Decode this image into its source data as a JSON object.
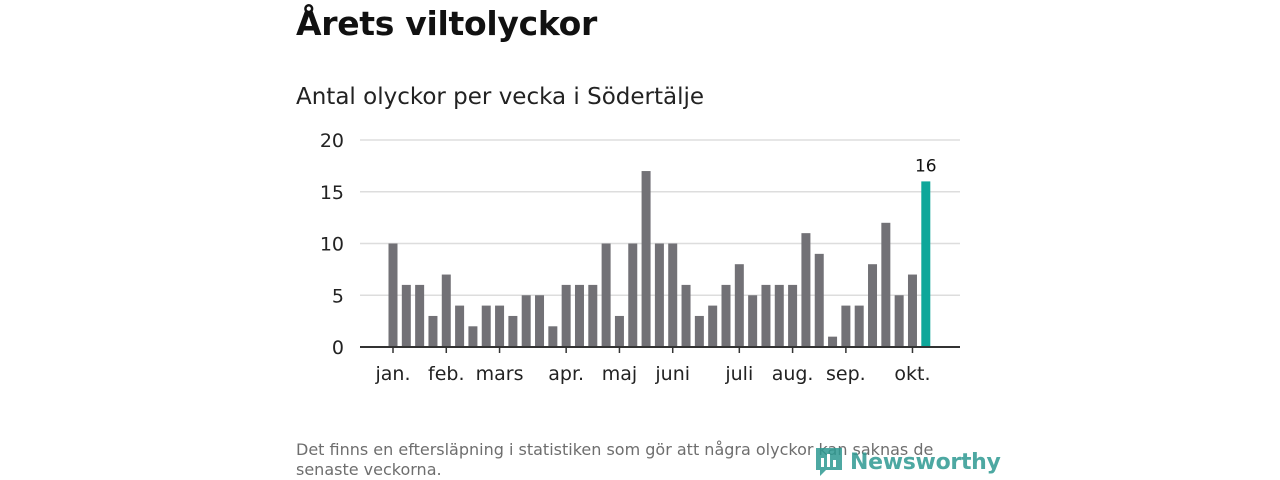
{
  "title": "Årets viltolyckor",
  "subtitle": "Antal olyckor per vecka i Södertälje",
  "note": "Det finns en eftersläpning i statistiken som gör att några olyckor kan saknas de senaste veckorna.",
  "brand": {
    "name": "Newsworthy",
    "icon": "newsworthy-logo-icon",
    "color": "#2e9a92"
  },
  "chart_data": {
    "type": "bar",
    "ylim": [
      0,
      20
    ],
    "yticks": [
      0,
      5,
      10,
      15,
      20
    ],
    "values": [
      10,
      6,
      6,
      3,
      7,
      4,
      2,
      4,
      4,
      3,
      5,
      5,
      2,
      6,
      6,
      6,
      10,
      3,
      10,
      17,
      10,
      10,
      6,
      3,
      4,
      6,
      8,
      5,
      6,
      6,
      6,
      11,
      9,
      1,
      4,
      4,
      8,
      12,
      5,
      7,
      16
    ],
    "month_labels": [
      {
        "label": "jan.",
        "index": 0
      },
      {
        "label": "feb.",
        "index": 4
      },
      {
        "label": "mars",
        "index": 8
      },
      {
        "label": "apr.",
        "index": 13
      },
      {
        "label": "maj",
        "index": 17
      },
      {
        "label": "juni",
        "index": 21
      },
      {
        "label": "juli",
        "index": 26
      },
      {
        "label": "aug.",
        "index": 30
      },
      {
        "label": "sep.",
        "index": 34
      },
      {
        "label": "okt.",
        "index": 39
      }
    ],
    "highlight_index": 40,
    "highlight_label": "16",
    "colors": {
      "bar": "#727176",
      "highlight": "#0ea79a",
      "grid": "#dddddd",
      "axis": "#333333"
    }
  }
}
